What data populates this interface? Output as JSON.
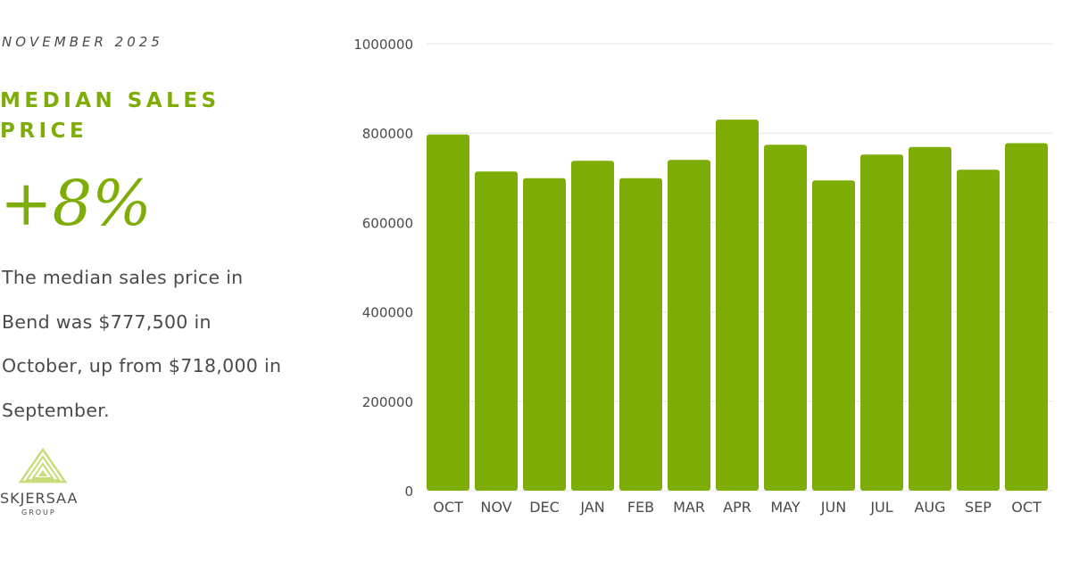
{
  "header": {
    "date": "NOVEMBER 2025",
    "title": "MEDIAN SALES PRICE",
    "stat": "+8%",
    "description": "The median sales price in Bend was $777,500 in October, up from $718,000 in September."
  },
  "logo": {
    "name": "SKJERSAA",
    "sub": "GROUP",
    "icon": "triangle-mark-icon"
  },
  "colors": {
    "accent": "#7fad07",
    "text": "#4a4a4a",
    "grid": "#e6e6e6",
    "logo_light": "#c6dd7a"
  },
  "chart_data": {
    "type": "bar",
    "categories": [
      "OCT",
      "NOV",
      "DEC",
      "JAN",
      "FEB",
      "MAR",
      "APR",
      "MAY",
      "JUN",
      "JUL",
      "AUG",
      "SEP",
      "OCT"
    ],
    "values": [
      797000,
      714000,
      699000,
      738000,
      699000,
      740000,
      830000,
      774000,
      694000,
      752000,
      769000,
      718000,
      777500
    ],
    "yticks": [
      "0",
      "200000",
      "400000",
      "600000",
      "800000",
      "1000000"
    ],
    "ylim": [
      0,
      1000000
    ],
    "grid": true,
    "title": "",
    "xlabel": "",
    "ylabel": ""
  }
}
